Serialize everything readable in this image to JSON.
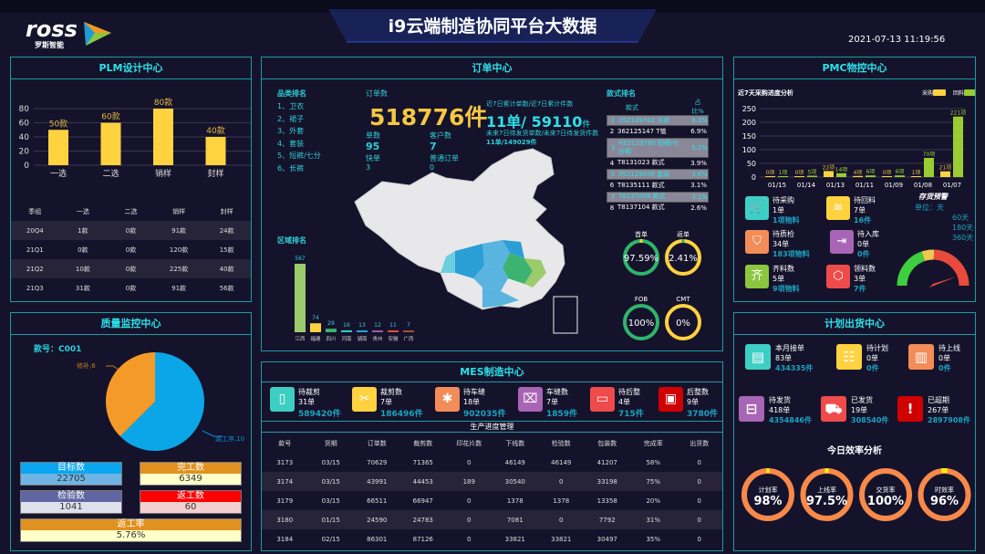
{
  "header": {
    "title": "i9云端制造协同平台大数据",
    "datetime": "2021-07-13 11:19:56",
    "logo_text": "ross",
    "logo_sub": "罗斯智能"
  },
  "plm": {
    "title": "PLM设计中心",
    "chart": {
      "type": "bar",
      "categories": [
        "一选",
        "二选",
        "销样",
        "封样"
      ],
      "values": [
        50,
        60,
        80,
        40
      ],
      "labels": [
        "50款",
        "60款",
        "80款",
        "40款"
      ],
      "ylim": [
        0,
        80
      ],
      "yticks": [
        "0",
        "20",
        "40",
        "60",
        "80"
      ],
      "color": "#ffd23f"
    },
    "table": {
      "headers": [
        "季组",
        "一选",
        "二选",
        "销样",
        "封样"
      ],
      "rows": [
        [
          "20Q4",
          "1款",
          "0款",
          "91款",
          "24款"
        ],
        [
          "21Q1",
          "0款",
          "0款",
          "120款",
          "15款"
        ],
        [
          "21Q2",
          "10款",
          "0款",
          "225款",
          "40款"
        ],
        [
          "21Q3",
          "31款",
          "0款",
          "91款",
          "56款"
        ]
      ]
    }
  },
  "quality": {
    "title": "质量监控中心",
    "style_no": "款号：C001",
    "pie": {
      "type": "pie",
      "slices": [
        {
          "label": "漏工序",
          "value": 10,
          "color": "#0aa6e8"
        },
        {
          "label": "修补",
          "value": 6,
          "color": "#f49a28"
        }
      ],
      "labels": [
        "漏工序,10",
        "修补,6"
      ]
    },
    "boxes": [
      {
        "label": "目标数",
        "value": "22705"
      },
      {
        "label": "完工数",
        "value": "6349"
      },
      {
        "label": "检验数",
        "value": "1041"
      },
      {
        "label": "返工数",
        "value": "60"
      },
      {
        "label": "返工率",
        "value": "5.76%"
      }
    ]
  },
  "order": {
    "title": "订单中心",
    "category_title": "品类排名",
    "categories": [
      "1、卫衣",
      "2、裙子",
      "3、外套",
      "4、套装",
      "5、短裤/七分",
      "6、长裤"
    ],
    "order_count_label": "订单数",
    "order_count": "518776件",
    "single_label": "单数",
    "single": "95",
    "customer_label": "客户数",
    "customer": "7",
    "fast_label": "快单",
    "fast": "3",
    "normal_label": "普通订单",
    "normal": "0",
    "recent_label": "近7日累计单数/近7日累计件数",
    "recent_value": "11单/ 59110",
    "recent_unit": "件",
    "future_label": "未来7日待发货单数/未来7日待发货件数",
    "future_value": "11单/149029件",
    "style_title": "款式排名",
    "style_headers": [
      "款式",
      "占比%"
    ],
    "styles": [
      [
        "1",
        "352139742 长裤",
        "8.3%"
      ],
      [
        "2",
        "362125147 T恤",
        "6.9%"
      ],
      [
        "3",
        "H52129780 短裤/七分裤",
        "5.2%"
      ],
      [
        "4",
        "T8131023 款式",
        "3.9%"
      ],
      [
        "5",
        "352129206 套装",
        "3.6%"
      ],
      [
        "6",
        "T8135111 款式",
        "3.1%"
      ],
      [
        "7",
        "T8137008 款式",
        "3.1%"
      ],
      [
        "8",
        "T8137104 款式",
        "2.6%"
      ]
    ],
    "region_title": "区域排名",
    "region_chart": {
      "type": "bar",
      "categories": [
        "江西",
        "福建",
        "四川",
        "河南",
        "湖南",
        "贵州",
        "安徽",
        "广西"
      ],
      "values": [
        567,
        74,
        29,
        16,
        13,
        12,
        11,
        7
      ],
      "colors": [
        "#9ccb6c",
        "#ffd23f",
        "#3cb371",
        "#2ccfb8",
        "#2a9fd6",
        "#9b59b6",
        "#e74c3c",
        "#a0522d"
      ]
    },
    "rings": [
      {
        "label": "首单",
        "value": "97.59%",
        "pct": 97.59,
        "color": "#2fb56a",
        "accent": "#ffd23f"
      },
      {
        "label": "返单",
        "value": "2.41%",
        "pct": 2.41,
        "color": "#ffd23f",
        "accent": "#2fb56a"
      },
      {
        "label": "FOB",
        "value": "100%",
        "pct": 100,
        "color": "#2fb56a",
        "accent": "#2fb56a"
      },
      {
        "label": "CMT",
        "value": "0%",
        "pct": 0,
        "color": "#ffd23f",
        "accent": "#ffd23f"
      }
    ]
  },
  "mes": {
    "title": "MES制造中心",
    "items": [
      {
        "name": "待裁剪",
        "orders": "31单",
        "pieces": "589420件",
        "icon": "panels-icon",
        "color": "#3ecfc4"
      },
      {
        "name": "裁剪数",
        "orders": "7单",
        "pieces": "186496件",
        "icon": "scissors-icon",
        "color": "#ffd23f"
      },
      {
        "name": "待车缝",
        "orders": "18单",
        "pieces": "902035件",
        "icon": "leather-icon",
        "color": "#f28c58"
      },
      {
        "name": "车缝数",
        "orders": "7单",
        "pieces": "1859件",
        "icon": "sewing-machine-icon",
        "color": "#a865b5"
      },
      {
        "name": "待后整",
        "orders": "4单",
        "pieces": "715件",
        "icon": "box-icon",
        "color": "#ef4b4b"
      },
      {
        "name": "后整数",
        "orders": "9单",
        "pieces": "3780件",
        "icon": "package-icon",
        "color": "#d00000"
      }
    ],
    "table_title": "生产进度管理",
    "headers": [
      "款号",
      "货期",
      "订单数",
      "裁剪数",
      "印花片数",
      "下线数",
      "检验数",
      "包装数",
      "完成率",
      "出货数"
    ],
    "rows": [
      [
        "3173",
        "03/15",
        "70629",
        "71365",
        "0",
        "46149",
        "46149",
        "41207",
        "58%",
        "0"
      ],
      [
        "3174",
        "03/15",
        "43991",
        "44453",
        "189",
        "30540",
        "0",
        "33198",
        "75%",
        "0"
      ],
      [
        "3179",
        "03/15",
        "66511",
        "66947",
        "0",
        "1378",
        "1378",
        "13358",
        "20%",
        "0"
      ],
      [
        "3180",
        "01/15",
        "24590",
        "24783",
        "0",
        "7081",
        "0",
        "7792",
        "31%",
        "0"
      ],
      [
        "3184",
        "02/15",
        "86301",
        "87126",
        "0",
        "33821",
        "33821",
        "30497",
        "35%",
        "0"
      ]
    ]
  },
  "pmc": {
    "title": "PMC物控中心",
    "chart": {
      "type": "bar",
      "title": "近7天采购进度分析",
      "categories": [
        "01/15",
        "01/14",
        "01/13",
        "01/11",
        "01/09",
        "01/08",
        "01/07"
      ],
      "series": [
        {
          "name": "采购",
          "values": [
            0,
            0,
            22,
            4,
            0,
            1,
            21
          ],
          "color": "#ffd23f"
        },
        {
          "name": "回料",
          "values": [
            1,
            5,
            14,
            6,
            6,
            70,
            221
          ],
          "color": "#9acd32"
        }
      ],
      "ylim": [
        0,
        250
      ],
      "yticks": [
        "0",
        "50",
        "100",
        "150",
        "200",
        "250"
      ],
      "unit": "项"
    },
    "items": [
      {
        "name": "待采购",
        "orders": "1单",
        "detail": "1项物料",
        "icon": "cart-icon",
        "color": "#3ecfc4"
      },
      {
        "name": "待回料",
        "orders": "7单",
        "detail": "16件",
        "icon": "layers-icon",
        "color": "#ffd23f"
      },
      {
        "name": "待质检",
        "orders": "34单",
        "detail": "183项物料",
        "icon": "shield-icon",
        "color": "#f28c58"
      },
      {
        "name": "待入库",
        "orders": "0单",
        "detail": "0件",
        "icon": "warehouse-icon",
        "color": "#a865b5"
      },
      {
        "name": "齐料数",
        "orders": "5单",
        "detail": "9项物料",
        "icon": "complete-icon",
        "color": "#8cc63f"
      },
      {
        "name": "领料数",
        "orders": "3单",
        "detail": "7件",
        "icon": "cube-icon",
        "color": "#ef4b4b"
      }
    ],
    "stock": {
      "title": "存货预警",
      "unit": "单位：天",
      "levels": [
        "60天",
        "180天",
        "360天"
      ],
      "colors": [
        "#3ecf3e",
        "#f0c850",
        "#e84a3c"
      ]
    }
  },
  "plan": {
    "title": "计划出货中心",
    "items": [
      {
        "name": "本月接单",
        "orders": "83单",
        "pieces": "434335件",
        "icon": "document-check-icon",
        "color": "#3ecfc4"
      },
      {
        "name": "待计划",
        "orders": "0单",
        "pieces": "0件",
        "icon": "clipboard-icon",
        "color": "#ffd23f"
      },
      {
        "name": "待上线",
        "orders": "0单",
        "pieces": "0件",
        "icon": "bar-icon",
        "color": "#f28c58"
      },
      {
        "name": "待发货",
        "orders": "418单",
        "pieces": "4354846件",
        "icon": "outbox-icon",
        "color": "#a865b5"
      },
      {
        "name": "已发货",
        "orders": "19单",
        "pieces": "308540件",
        "icon": "truck-icon",
        "color": "#ef4b4b"
      },
      {
        "name": "已超期",
        "orders": "267单",
        "pieces": "2897908件",
        "icon": "alert-icon",
        "color": "#d00000"
      }
    ],
    "efficiency_title": "今日效率分析",
    "efficiency": [
      {
        "label": "计划率",
        "value": "98%",
        "pct": 98
      },
      {
        "label": "上线率",
        "value": "97.5%",
        "pct": 97.5
      },
      {
        "label": "交货率",
        "value": "100%",
        "pct": 100
      },
      {
        "label": "时效率",
        "value": "96%",
        "pct": 96
      }
    ]
  }
}
